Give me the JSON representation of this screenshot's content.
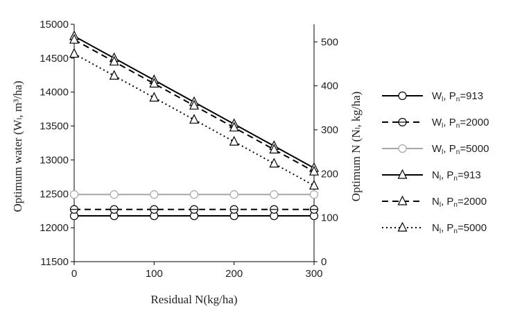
{
  "chart_data": {
    "type": "line",
    "xlabel": "Residual N(kg/ha)",
    "ylabel_left": "Optimum water (Wₗ, m³/ha)",
    "ylabel_right": "Optimum N (Nₗ, kg/ha)",
    "x_ticks": [
      "0",
      "100",
      "200",
      "300"
    ],
    "y_left_ticks": [
      "11500",
      "12000",
      "12500",
      "13000",
      "13500",
      "14000",
      "14500",
      "15000"
    ],
    "y_right_ticks": [
      "0",
      "100",
      "200",
      "300",
      "400",
      "500"
    ],
    "xlim": [
      0,
      300
    ],
    "ylim_left": [
      11500,
      15000
    ],
    "ylim_right": [
      0,
      540
    ],
    "grid": false,
    "legend_position": "right",
    "x": [
      0,
      50,
      100,
      150,
      200,
      250,
      300
    ],
    "series": [
      {
        "name": "Wₗ, Pₙ=913",
        "axis": "left",
        "line": "solid",
        "color": "#000000",
        "marker": "circle",
        "values": [
          12175,
          12175,
          12175,
          12175,
          12175,
          12175,
          12175
        ]
      },
      {
        "name": "Wₗ, Pₙ=2000",
        "axis": "left",
        "line": "dashed",
        "color": "#000000",
        "marker": "circle-half",
        "values": [
          12270,
          12270,
          12270,
          12270,
          12270,
          12270,
          12270
        ]
      },
      {
        "name": "Wₗ, Pₙ=5000",
        "axis": "left",
        "line": "solid",
        "color": "#a6a6a6",
        "marker": "circle",
        "values": [
          12490,
          12490,
          12490,
          12490,
          12490,
          12490,
          12490
        ]
      },
      {
        "name": "Nₗ, Pₙ=913",
        "axis": "right",
        "line": "solid",
        "color": "#000000",
        "marker": "triangle",
        "values": [
          513,
          463,
          413,
          363,
          313,
          263,
          213
        ]
      },
      {
        "name": "Nₗ, Pₙ=2000",
        "axis": "right",
        "line": "dashed",
        "color": "#000000",
        "marker": "triangle",
        "values": [
          505,
          455,
          405,
          355,
          305,
          255,
          205
        ]
      },
      {
        "name": "Nₗ, Pₙ=5000",
        "axis": "right",
        "line": "dotted",
        "color": "#000000",
        "marker": "triangle",
        "values": [
          473,
          423,
          373,
          323,
          273,
          223,
          173
        ]
      }
    ],
    "legend": [
      {
        "prefix": "W",
        "sub": "l",
        "mid": ", P",
        "sub2": "n",
        "suffix": "=913"
      },
      {
        "prefix": "W",
        "sub": "l",
        "mid": ", P",
        "sub2": "n",
        "suffix": "=2000"
      },
      {
        "prefix": "W",
        "sub": "l",
        "mid": ", P",
        "sub2": "n",
        "suffix": "=5000"
      },
      {
        "prefix": "N",
        "sub": "l",
        "mid": ", P",
        "sub2": "n",
        "suffix": "=913"
      },
      {
        "prefix": "N",
        "sub": "l",
        "mid": ", P",
        "sub2": "n",
        "suffix": "=2000"
      },
      {
        "prefix": "N",
        "sub": "l",
        "mid": ", P",
        "sub2": "n",
        "suffix": "=5000"
      }
    ]
  }
}
